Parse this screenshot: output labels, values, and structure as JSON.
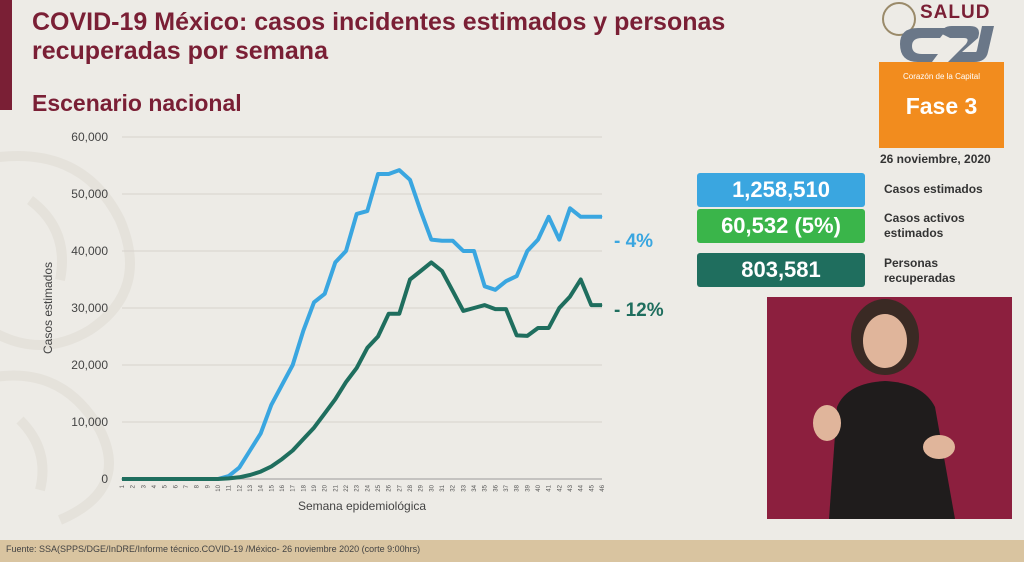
{
  "header": {
    "title": "COVID-19 México: casos incidentes estimados y personas recuperadas por semana",
    "subtitle": "Escenario nacional"
  },
  "brand": {
    "logo_text": "SALUD",
    "phase_caption": "Corazón de la Capital",
    "phase_label": "Fase 3",
    "date": "26 noviembre, 2020"
  },
  "stats": [
    {
      "value": "1,258,510",
      "label": "Casos estimados",
      "color": "#3aa6e0"
    },
    {
      "value": "60,532 (5%)",
      "label": "Casos activos estimados",
      "color": "#3ab54a"
    },
    {
      "value": "803,581",
      "label": "Personas recuperadas",
      "color": "#1f6e5e"
    }
  ],
  "footer": {
    "source": "Fuente: SSA(SPPS/DGE/InDRE/Informe técnico.COVID-19 /México- 26 noviembre 2020 (corte 9:00hrs)"
  },
  "chart_data": {
    "type": "line",
    "xlabel": "Semana epidemiológica",
    "ylabel": "Casos estimados",
    "ylim": [
      0,
      60000
    ],
    "yticks": [
      0,
      10000,
      20000,
      30000,
      40000,
      50000,
      60000
    ],
    "ytick_labels": [
      "0",
      "10,000",
      "20,000",
      "30,000",
      "40,000",
      "50,000",
      "60,000"
    ],
    "grid": true,
    "x": [
      1,
      2,
      3,
      4,
      5,
      6,
      7,
      8,
      9,
      10,
      11,
      12,
      13,
      14,
      15,
      16,
      17,
      18,
      19,
      20,
      21,
      22,
      23,
      24,
      25,
      26,
      27,
      28,
      29,
      30,
      31,
      32,
      33,
      34,
      35,
      36,
      37,
      38,
      39,
      40,
      41,
      42,
      43,
      44,
      45,
      46
    ],
    "series": [
      {
        "color": "#3aa6e0",
        "end_label": "- 4%",
        "values": [
          0,
          0,
          0,
          0,
          0,
          0,
          0,
          0,
          0,
          0,
          500,
          2000,
          5000,
          8000,
          13000,
          16500,
          20000,
          26000,
          31000,
          32500,
          38000,
          40000,
          46500,
          47000,
          53500,
          53500,
          54200,
          52500,
          47000,
          42000,
          41800,
          41800,
          40000,
          40000,
          33800,
          33200,
          34700,
          35600,
          40000,
          42000,
          46000,
          42000,
          47500,
          46000,
          46000,
          46000
        ]
      },
      {
        "color": "#1f6e5e",
        "end_label": "- 12%",
        "values": [
          0,
          0,
          0,
          0,
          0,
          0,
          0,
          0,
          0,
          0,
          100,
          300,
          700,
          1300,
          2200,
          3500,
          5000,
          7000,
          9000,
          11500,
          14000,
          17000,
          19500,
          23000,
          25000,
          29000,
          29000,
          35000,
          36500,
          38000,
          36500,
          33000,
          29500,
          30000,
          30500,
          29800,
          29800,
          25200,
          25100,
          26500,
          26500,
          30000,
          32000,
          35000,
          30500,
          30500
        ]
      }
    ]
  }
}
